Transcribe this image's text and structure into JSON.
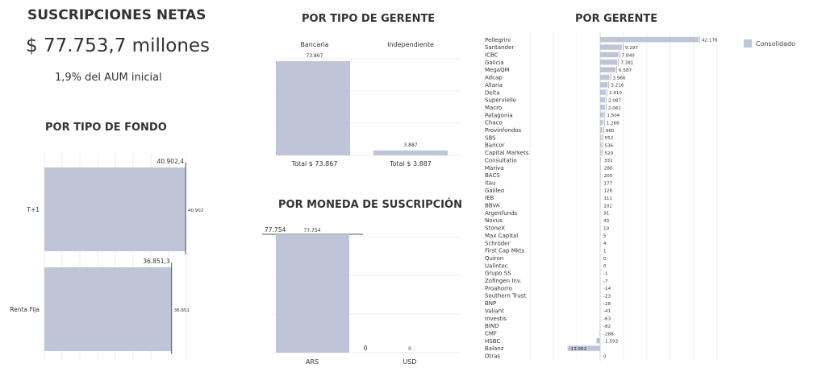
{
  "summary": {
    "title": "SUSCRIPCIONES NETAS",
    "total": "$ 77.753,7 millones",
    "pct_aum": "1,9% del AUM inicial"
  },
  "colors": {
    "bar": "#bfc4d6",
    "axis": "#555555",
    "grid": "#eeeeee"
  },
  "chart_data": [
    {
      "id": "fondo",
      "type": "bar",
      "orientation": "horizontal",
      "title": "POR TIPO DE FONDO",
      "categories": [
        "T+1",
        "Renta Fija"
      ],
      "values": [
        40902.4,
        36851.3
      ],
      "value_labels": [
        "40.902",
        "36.851"
      ],
      "total_labels": [
        "40.902,4",
        "36.851,3"
      ]
    },
    {
      "id": "gerente_tipo",
      "type": "bar",
      "title": "POR TIPO DE GERENTE",
      "categories": [
        "Bancaria",
        "Independiente"
      ],
      "values": [
        73867,
        3887
      ],
      "value_labels": [
        "73.867",
        "3.887"
      ],
      "footer_labels": [
        "Total $ 73.867",
        "Total $ 3.887"
      ]
    },
    {
      "id": "moneda",
      "type": "bar",
      "title": "POR MONEDA DE SUSCRIPCIÓN",
      "categories": [
        "ARS",
        "USD"
      ],
      "values": [
        77754,
        0
      ],
      "value_labels": [
        "77.754",
        "0"
      ],
      "ref_value": "77.754",
      "ref_line_value": 77754
    },
    {
      "id": "gerente",
      "type": "bar",
      "orientation": "horizontal",
      "title": "POR GERENTE",
      "legend": [
        "Consolidado"
      ],
      "categories": [
        "Pellegrini",
        "Santander",
        "ICBC",
        "Galicia",
        "MegaQM",
        "Adcap",
        "Allaria",
        "Delta",
        "Supervielle",
        "Macro",
        "Patagonia",
        "Chaco",
        "Provinfondos",
        "SBS",
        "Bancor",
        "Capital Markets",
        "Consultatio",
        "Mariva",
        "BACS",
        "Itau",
        "Galileo",
        "IEB",
        "BBVA",
        "Argenfunds",
        "Novus",
        "StoneX",
        "Max Capital",
        "Schroder",
        "First Cap Mkts",
        "Quiron",
        "Ualintec",
        "Grupo SS",
        "Zofingen Inv.",
        "Proahorro",
        "Southern Trust",
        "BNP",
        "Valiant",
        "Investis",
        "BIND",
        "CMF",
        "HSBC",
        "Balanz",
        "Otras"
      ],
      "values": [
        42176,
        9297,
        7840,
        7381,
        6587,
        3966,
        3216,
        2410,
        2087,
        2061,
        1504,
        1266,
        960,
        552,
        536,
        520,
        331,
        280,
        205,
        177,
        128,
        111,
        102,
        91,
        43,
        10,
        5,
        4,
        1,
        0,
        0,
        -1,
        -7,
        -14,
        -23,
        -28,
        -41,
        -63,
        -82,
        -288,
        -1593,
        -13952,
        0
      ],
      "value_labels": [
        "42.176",
        "9.297",
        "7.840",
        "7.381",
        "6.587",
        "3.966",
        "3.216",
        "2.410",
        "2.087",
        "2.061",
        "1.504",
        "1.266",
        "960",
        "552",
        "536",
        "520",
        "331",
        "280",
        "205",
        "177",
        "128",
        "111",
        "102",
        "91",
        "43",
        "10",
        "5",
        "4",
        "1",
        "0",
        "0",
        "-1",
        "-7",
        "-14",
        "-23",
        "-28",
        "-41",
        "-63",
        "-82",
        "-288",
        "-1.593",
        "-13.952",
        "0"
      ]
    }
  ]
}
